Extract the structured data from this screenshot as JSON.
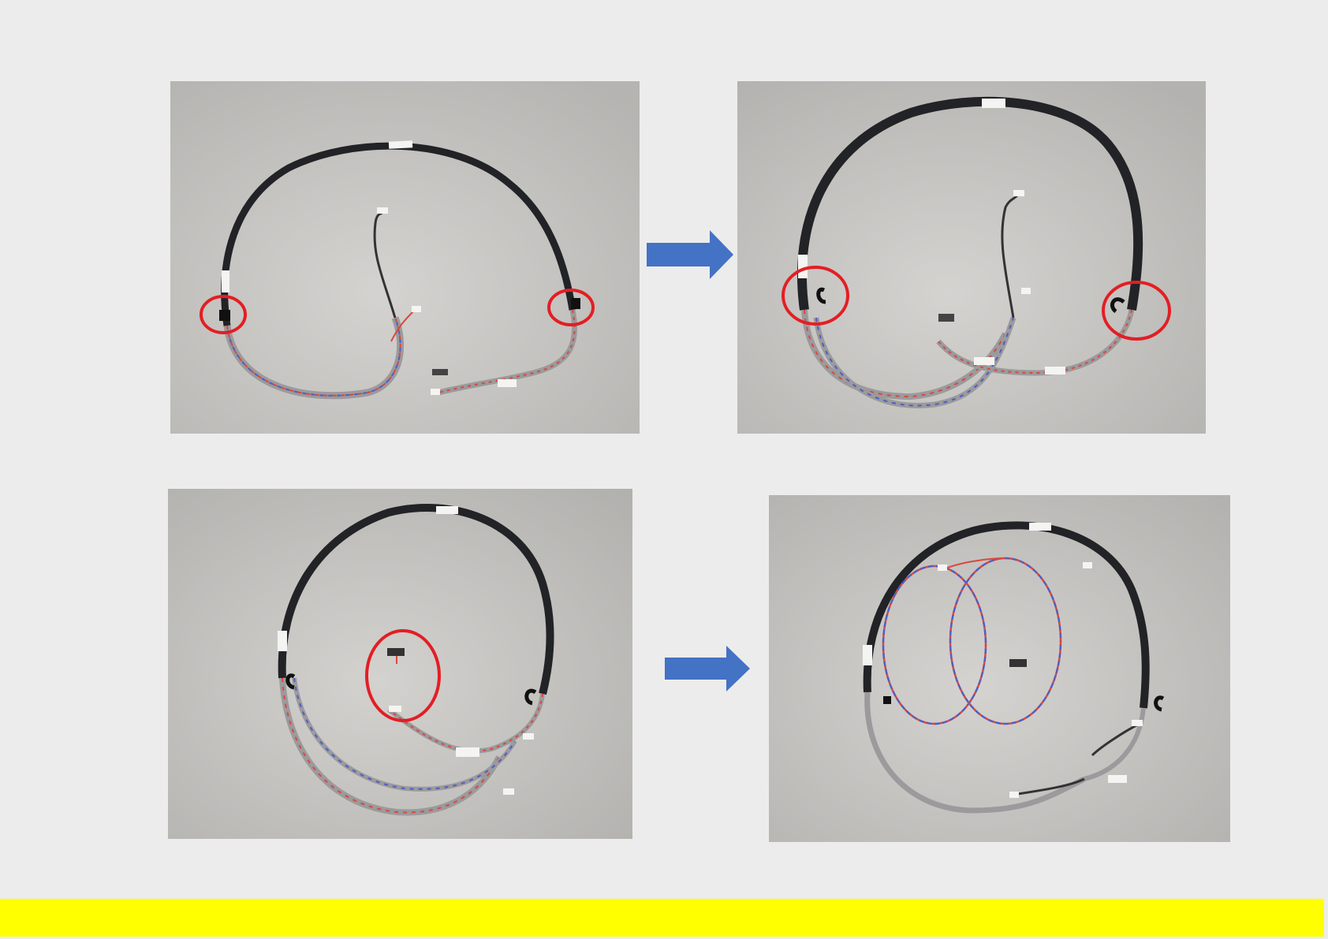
{
  "colors": {
    "background": "#ececec",
    "photo_background": "#c9c8c5",
    "braided_sleeve": "#222326",
    "grey_cable": "#9b9a9c",
    "wire_red": "#d9483f",
    "wire_blue": "#4e5ec4",
    "connector_white": "#f4f4f2",
    "highlight_circle": "#e31e24",
    "arrow": "#4472c4",
    "footer_bar": "#ffff00"
  },
  "photos": [
    {
      "name": "photo-top-left",
      "description_icon": "cable-harness-photo"
    },
    {
      "name": "photo-top-right",
      "description_icon": "cable-harness-photo"
    },
    {
      "name": "photo-bottom-left",
      "description_icon": "cable-harness-photo"
    },
    {
      "name": "photo-bottom-right",
      "description_icon": "cable-harness-photo"
    }
  ],
  "arrows": [
    {
      "name": "arrow-top",
      "icon": "right-arrow-icon"
    },
    {
      "name": "arrow-bottom",
      "icon": "right-arrow-icon"
    }
  ]
}
